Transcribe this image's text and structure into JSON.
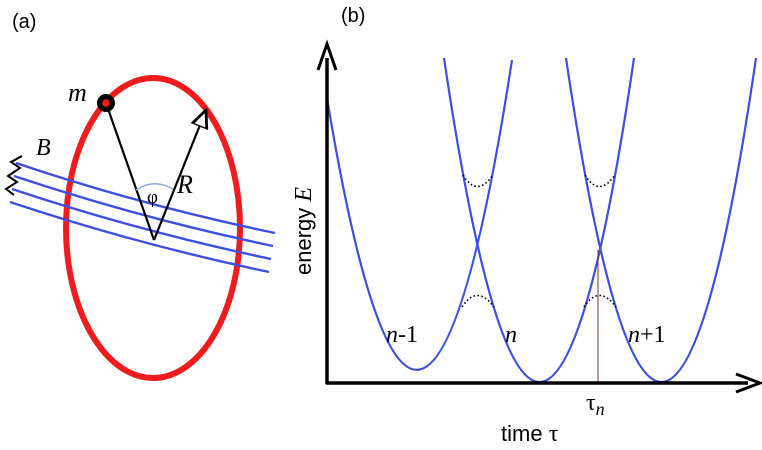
{
  "panel_a": {
    "label": "(a)",
    "mass_label": "m",
    "field_label": "B",
    "angle_label": "φ",
    "radius_label": "R",
    "colors": {
      "ring": "#ee1c1c",
      "field": "#3b4fe0",
      "rod": "#000000"
    }
  },
  "panel_b": {
    "label": "(b)",
    "y_axis_label_prefix": "energy ",
    "y_axis_label_var": "E",
    "x_axis_label_prefix": "time ",
    "x_axis_label_var": "τ",
    "marker_label_base": "τ",
    "marker_label_sub": "n",
    "curve_labels": [
      {
        "italic": "n",
        "plain": "-1"
      },
      {
        "italic": "n",
        "plain": ""
      },
      {
        "italic": "n",
        "plain": "+1"
      }
    ],
    "colors": {
      "curves": "#3b4fe0",
      "axes": "#000000",
      "marker": "#8a2b2b"
    }
  }
}
